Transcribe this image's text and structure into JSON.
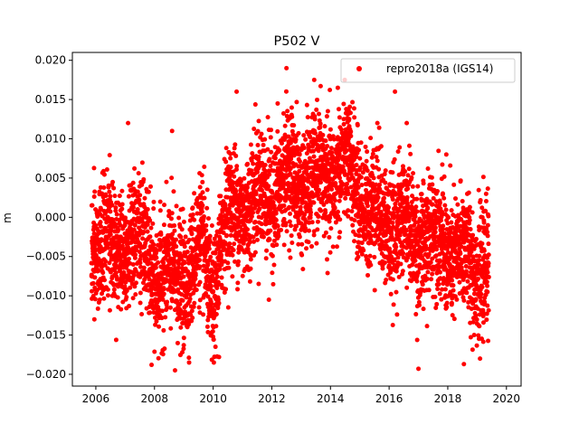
{
  "chart_data": {
    "type": "scatter",
    "title": "P502 V",
    "xlabel": "",
    "ylabel": "m",
    "xlim": [
      2005.2,
      2020.5
    ],
    "ylim": [
      -0.0215,
      0.021
    ],
    "x_ticks": [
      2006,
      2008,
      2010,
      2012,
      2014,
      2016,
      2018,
      2020
    ],
    "y_ticks": [
      -0.02,
      -0.015,
      -0.01,
      -0.005,
      0.0,
      0.005,
      0.01,
      0.015,
      0.02
    ],
    "x_tick_labels": [
      "2006",
      "2008",
      "2010",
      "2012",
      "2014",
      "2016",
      "2018",
      "2020"
    ],
    "y_tick_labels": [
      "−0.020",
      "−0.015",
      "−0.010",
      "−0.005",
      "0.000",
      "0.005",
      "0.010",
      "0.015",
      "0.020"
    ],
    "grid": false,
    "legend_position": "top-right",
    "series": [
      {
        "name": "repro2018a (IGS14)",
        "color": "#ff0000",
        "marker": "circle",
        "trend": [
          [
            2005.85,
            -0.004
          ],
          [
            2006.3,
            -0.002
          ],
          [
            2006.6,
            -0.005
          ],
          [
            2007.1,
            -0.002
          ],
          [
            2007.6,
            -0.004
          ],
          [
            2008.1,
            -0.007
          ],
          [
            2008.6,
            -0.008
          ],
          [
            2009.1,
            -0.007
          ],
          [
            2009.6,
            -0.004
          ],
          [
            2010.0,
            -0.01
          ],
          [
            2010.3,
            -0.002
          ],
          [
            2010.8,
            0.001
          ],
          [
            2011.3,
            0.002
          ],
          [
            2011.8,
            0.003
          ],
          [
            2012.3,
            0.004
          ],
          [
            2012.8,
            0.005
          ],
          [
            2013.3,
            0.004
          ],
          [
            2013.8,
            0.005
          ],
          [
            2014.3,
            0.006
          ],
          [
            2014.8,
            0.005
          ],
          [
            2015.3,
            0.001
          ],
          [
            2015.8,
            0.0
          ],
          [
            2016.3,
            -0.001
          ],
          [
            2016.8,
            -0.002
          ],
          [
            2017.3,
            -0.003
          ],
          [
            2017.8,
            -0.003
          ],
          [
            2018.3,
            -0.005
          ],
          [
            2018.8,
            -0.006
          ],
          [
            2019.35,
            -0.006
          ]
        ],
        "scatter_sd": 0.0042,
        "x_range": [
          2005.85,
          2019.4
        ],
        "n_points": 4400,
        "extremes": [
          [
            2012.5,
            0.019
          ],
          [
            2014.25,
            0.0165
          ],
          [
            2010.8,
            0.016
          ],
          [
            2016.2,
            0.016
          ],
          [
            2008.7,
            -0.0195
          ],
          [
            2017.0,
            -0.0193
          ],
          [
            2018.55,
            -0.0187
          ],
          [
            2007.9,
            -0.0188
          ],
          [
            2010.2,
            -0.0178
          ],
          [
            2019.1,
            -0.018
          ],
          [
            2007.1,
            0.012
          ],
          [
            2008.6,
            0.011
          ],
          [
            2012.2,
            0.0145
          ],
          [
            2013.2,
            0.0143
          ],
          [
            2015.6,
            0.012
          ],
          [
            2016.6,
            0.012
          ],
          [
            2017.95,
            0.008
          ],
          [
            2005.95,
            -0.013
          ],
          [
            2018.9,
            -0.015
          ],
          [
            2011.9,
            -0.0105
          ]
        ]
      }
    ]
  }
}
